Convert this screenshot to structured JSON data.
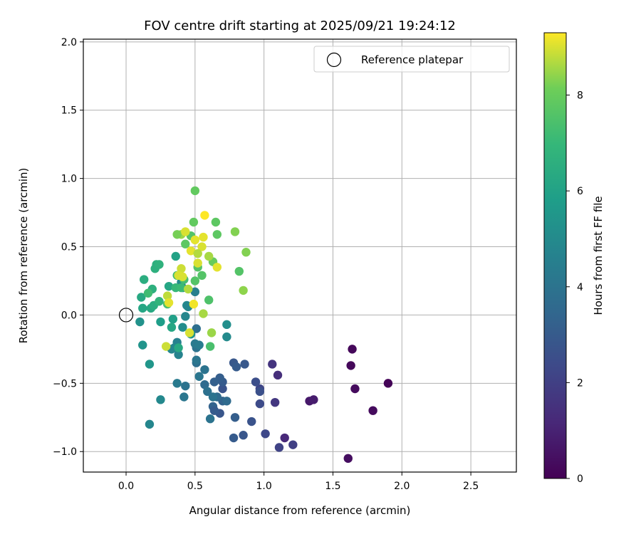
{
  "chart_data": {
    "type": "scatter",
    "title": "FOV centre drift starting at 2025/09/21 19:24:12",
    "xlabel": "Angular distance from reference (arcmin)",
    "ylabel": "Rotation from reference (arcmin)",
    "xlim": [
      -0.31,
      2.83
    ],
    "ylim": [
      -1.15,
      2.02
    ],
    "x_ticks": [
      0.0,
      0.5,
      1.0,
      1.5,
      2.0,
      2.5
    ],
    "x_tick_labels": [
      "0.0",
      "0.5",
      "1.0",
      "1.5",
      "2.0",
      "2.5"
    ],
    "y_ticks": [
      -1.0,
      -0.5,
      0.0,
      0.5,
      1.0,
      1.5,
      2.0
    ],
    "y_tick_labels": [
      "−1.0",
      "−0.5",
      "0.0",
      "0.5",
      "1.0",
      "1.5",
      "2.0"
    ],
    "grid": true,
    "legend": {
      "position": "top-right",
      "entries": [
        "Reference platepar"
      ]
    },
    "reference_point": {
      "x": 0.0,
      "y": 0.0,
      "label": "Reference platepar",
      "marker": "open-circle"
    },
    "colorbar": {
      "label": "Hours from first FF file",
      "range": [
        0,
        9.3
      ],
      "ticks": [
        0,
        2,
        4,
        6,
        8
      ],
      "tick_labels": [
        "0",
        "2",
        "4",
        "6",
        "8"
      ],
      "colormap": "viridis"
    },
    "points": [
      {
        "x": 1.64,
        "y": -0.25,
        "c": 0.2
      },
      {
        "x": 1.63,
        "y": -0.37,
        "c": 0.2
      },
      {
        "x": 1.66,
        "y": -0.54,
        "c": 0.3
      },
      {
        "x": 1.9,
        "y": -0.5,
        "c": 0.1
      },
      {
        "x": 1.79,
        "y": -0.7,
        "c": 0.3
      },
      {
        "x": 1.61,
        "y": -1.05,
        "c": 0.4
      },
      {
        "x": 1.33,
        "y": -0.63,
        "c": 0.7
      },
      {
        "x": 1.36,
        "y": -0.62,
        "c": 0.8
      },
      {
        "x": 1.15,
        "y": -0.9,
        "c": 1.2
      },
      {
        "x": 1.1,
        "y": -0.44,
        "c": 1.4
      },
      {
        "x": 1.06,
        "y": -0.36,
        "c": 1.6
      },
      {
        "x": 1.08,
        "y": -0.64,
        "c": 1.7
      },
      {
        "x": 1.21,
        "y": -0.95,
        "c": 2.0
      },
      {
        "x": 1.11,
        "y": -0.97,
        "c": 2.1
      },
      {
        "x": 1.01,
        "y": -0.87,
        "c": 2.3
      },
      {
        "x": 0.97,
        "y": -0.54,
        "c": 2.2
      },
      {
        "x": 0.97,
        "y": -0.65,
        "c": 2.4
      },
      {
        "x": 0.94,
        "y": -0.49,
        "c": 2.5
      },
      {
        "x": 0.97,
        "y": -0.56,
        "c": 2.6
      },
      {
        "x": 0.91,
        "y": -0.78,
        "c": 2.7
      },
      {
        "x": 0.85,
        "y": -0.88,
        "c": 2.8
      },
      {
        "x": 0.86,
        "y": -0.36,
        "c": 2.9
      },
      {
        "x": 0.78,
        "y": -0.35,
        "c": 2.9
      },
      {
        "x": 0.8,
        "y": -0.38,
        "c": 3.0
      },
      {
        "x": 0.78,
        "y": -0.9,
        "c": 3.0
      },
      {
        "x": 0.79,
        "y": -0.75,
        "c": 3.1
      },
      {
        "x": 0.7,
        "y": -0.54,
        "c": 2.7
      },
      {
        "x": 0.7,
        "y": -0.49,
        "c": 3.0
      },
      {
        "x": 0.68,
        "y": -0.46,
        "c": 3.1
      },
      {
        "x": 0.64,
        "y": -0.49,
        "c": 3.2
      },
      {
        "x": 0.68,
        "y": -0.72,
        "c": 2.8
      },
      {
        "x": 0.63,
        "y": -0.67,
        "c": 3.3
      },
      {
        "x": 0.64,
        "y": -0.7,
        "c": 3.0
      },
      {
        "x": 0.7,
        "y": -0.63,
        "c": 3.3
      },
      {
        "x": 0.73,
        "y": -0.63,
        "c": 3.6
      },
      {
        "x": 0.66,
        "y": -0.6,
        "c": 3.6
      },
      {
        "x": 0.63,
        "y": -0.6,
        "c": 4.0
      },
      {
        "x": 0.61,
        "y": -0.76,
        "c": 4.0
      },
      {
        "x": 0.57,
        "y": -0.51,
        "c": 3.6
      },
      {
        "x": 0.59,
        "y": -0.56,
        "c": 3.9
      },
      {
        "x": 0.53,
        "y": -0.45,
        "c": 4.1
      },
      {
        "x": 0.57,
        "y": -0.4,
        "c": 4.0
      },
      {
        "x": 0.51,
        "y": -0.35,
        "c": 3.8
      },
      {
        "x": 0.51,
        "y": -0.33,
        "c": 4.1
      },
      {
        "x": 0.51,
        "y": -0.24,
        "c": 4.0
      },
      {
        "x": 0.51,
        "y": -0.1,
        "c": 3.8
      },
      {
        "x": 0.5,
        "y": -0.21,
        "c": 4.3
      },
      {
        "x": 0.53,
        "y": -0.22,
        "c": 4.4
      },
      {
        "x": 0.5,
        "y": 0.17,
        "c": 4.5
      },
      {
        "x": 0.43,
        "y": -0.52,
        "c": 4.0
      },
      {
        "x": 0.42,
        "y": -0.6,
        "c": 4.1
      },
      {
        "x": 0.37,
        "y": -0.5,
        "c": 4.3
      },
      {
        "x": 0.37,
        "y": -0.2,
        "c": 4.6
      },
      {
        "x": 0.38,
        "y": -0.29,
        "c": 4.7
      },
      {
        "x": 0.35,
        "y": -0.24,
        "c": 4.8
      },
      {
        "x": 0.33,
        "y": -0.25,
        "c": 4.8
      },
      {
        "x": 0.44,
        "y": 0.07,
        "c": 4.9
      },
      {
        "x": 0.43,
        "y": -0.01,
        "c": 4.8
      },
      {
        "x": 0.45,
        "y": 0.06,
        "c": 4.8
      },
      {
        "x": 0.41,
        "y": 0.2,
        "c": 4.6
      },
      {
        "x": 0.4,
        "y": 0.24,
        "c": 5.0
      },
      {
        "x": 0.41,
        "y": -0.09,
        "c": 5.1
      },
      {
        "x": 0.47,
        "y": -0.14,
        "c": 5.4
      },
      {
        "x": 0.73,
        "y": -0.16,
        "c": 5.0
      },
      {
        "x": 0.73,
        "y": -0.07,
        "c": 5.2
      },
      {
        "x": 0.25,
        "y": -0.62,
        "c": 4.9
      },
      {
        "x": 0.17,
        "y": -0.8,
        "c": 4.8
      },
      {
        "x": 0.1,
        "y": -0.05,
        "c": 5.3
      },
      {
        "x": 0.12,
        "y": -0.22,
        "c": 5.4
      },
      {
        "x": 0.17,
        "y": -0.36,
        "c": 5.5
      },
      {
        "x": 0.25,
        "y": -0.05,
        "c": 5.8
      },
      {
        "x": 0.34,
        "y": -0.03,
        "c": 5.9
      },
      {
        "x": 0.33,
        "y": -0.09,
        "c": 6.2
      },
      {
        "x": 0.38,
        "y": -0.24,
        "c": 6.3
      },
      {
        "x": 0.36,
        "y": 0.43,
        "c": 6.0
      },
      {
        "x": 0.31,
        "y": 0.21,
        "c": 6.2
      },
      {
        "x": 0.11,
        "y": 0.13,
        "c": 6.3
      },
      {
        "x": 0.12,
        "y": 0.05,
        "c": 6.2
      },
      {
        "x": 0.18,
        "y": 0.05,
        "c": 6.3
      },
      {
        "x": 0.2,
        "y": 0.07,
        "c": 6.5
      },
      {
        "x": 0.13,
        "y": 0.26,
        "c": 6.5
      },
      {
        "x": 0.19,
        "y": 0.19,
        "c": 6.6
      },
      {
        "x": 0.21,
        "y": 0.34,
        "c": 6.6
      },
      {
        "x": 0.22,
        "y": 0.37,
        "c": 6.6
      },
      {
        "x": 0.24,
        "y": 0.37,
        "c": 6.7
      },
      {
        "x": 0.24,
        "y": 0.1,
        "c": 6.8
      },
      {
        "x": 0.16,
        "y": 0.16,
        "c": 7.2
      },
      {
        "x": 0.3,
        "y": 0.08,
        "c": 7.4
      },
      {
        "x": 0.36,
        "y": 0.2,
        "c": 7.0
      },
      {
        "x": 0.37,
        "y": 0.29,
        "c": 7.2
      },
      {
        "x": 0.4,
        "y": 0.2,
        "c": 7.1
      },
      {
        "x": 0.42,
        "y": 0.26,
        "c": 7.3
      },
      {
        "x": 0.49,
        "y": 0.68,
        "c": 7.9
      },
      {
        "x": 0.5,
        "y": 0.91,
        "c": 7.9
      },
      {
        "x": 0.47,
        "y": 0.58,
        "c": 7.6
      },
      {
        "x": 0.43,
        "y": 0.52,
        "c": 7.8
      },
      {
        "x": 0.5,
        "y": 0.25,
        "c": 7.6
      },
      {
        "x": 0.52,
        "y": 0.35,
        "c": 7.6
      },
      {
        "x": 0.55,
        "y": 0.29,
        "c": 7.6
      },
      {
        "x": 0.6,
        "y": 0.11,
        "c": 7.5
      },
      {
        "x": 0.61,
        "y": -0.23,
        "c": 7.4
      },
      {
        "x": 0.65,
        "y": 0.68,
        "c": 7.8
      },
      {
        "x": 0.66,
        "y": 0.59,
        "c": 7.8
      },
      {
        "x": 0.63,
        "y": 0.39,
        "c": 8.0
      },
      {
        "x": 0.82,
        "y": 0.32,
        "c": 7.6
      },
      {
        "x": 0.79,
        "y": 0.61,
        "c": 8.3
      },
      {
        "x": 0.87,
        "y": 0.46,
        "c": 8.3
      },
      {
        "x": 0.85,
        "y": 0.18,
        "c": 8.4
      },
      {
        "x": 0.62,
        "y": -0.13,
        "c": 8.5
      },
      {
        "x": 0.56,
        "y": 0.01,
        "c": 8.6
      },
      {
        "x": 0.4,
        "y": 0.59,
        "c": 8.5
      },
      {
        "x": 0.37,
        "y": 0.59,
        "c": 8.2
      },
      {
        "x": 0.3,
        "y": 0.14,
        "c": 8.8
      },
      {
        "x": 0.29,
        "y": -0.23,
        "c": 8.9
      },
      {
        "x": 0.43,
        "y": 0.61,
        "c": 9.0
      },
      {
        "x": 0.47,
        "y": 0.47,
        "c": 9.1
      },
      {
        "x": 0.5,
        "y": 0.55,
        "c": 9.1
      },
      {
        "x": 0.52,
        "y": 0.38,
        "c": 9.0
      },
      {
        "x": 0.55,
        "y": 0.5,
        "c": 9.0
      },
      {
        "x": 0.56,
        "y": 0.57,
        "c": 9.1
      },
      {
        "x": 0.57,
        "y": 0.73,
        "c": 9.3
      },
      {
        "x": 0.6,
        "y": 0.43,
        "c": 8.6
      },
      {
        "x": 0.66,
        "y": 0.35,
        "c": 9.1
      },
      {
        "x": 0.4,
        "y": 0.34,
        "c": 8.9
      },
      {
        "x": 0.41,
        "y": 0.28,
        "c": 9.0
      },
      {
        "x": 0.38,
        "y": 0.29,
        "c": 9.0
      },
      {
        "x": 0.46,
        "y": -0.13,
        "c": 9.0
      },
      {
        "x": 0.49,
        "y": 0.08,
        "c": 9.2
      },
      {
        "x": 0.31,
        "y": 0.09,
        "c": 9.1
      },
      {
        "x": 0.45,
        "y": 0.19,
        "c": 8.7
      },
      {
        "x": 0.52,
        "y": 0.45,
        "c": 8.7
      }
    ]
  }
}
